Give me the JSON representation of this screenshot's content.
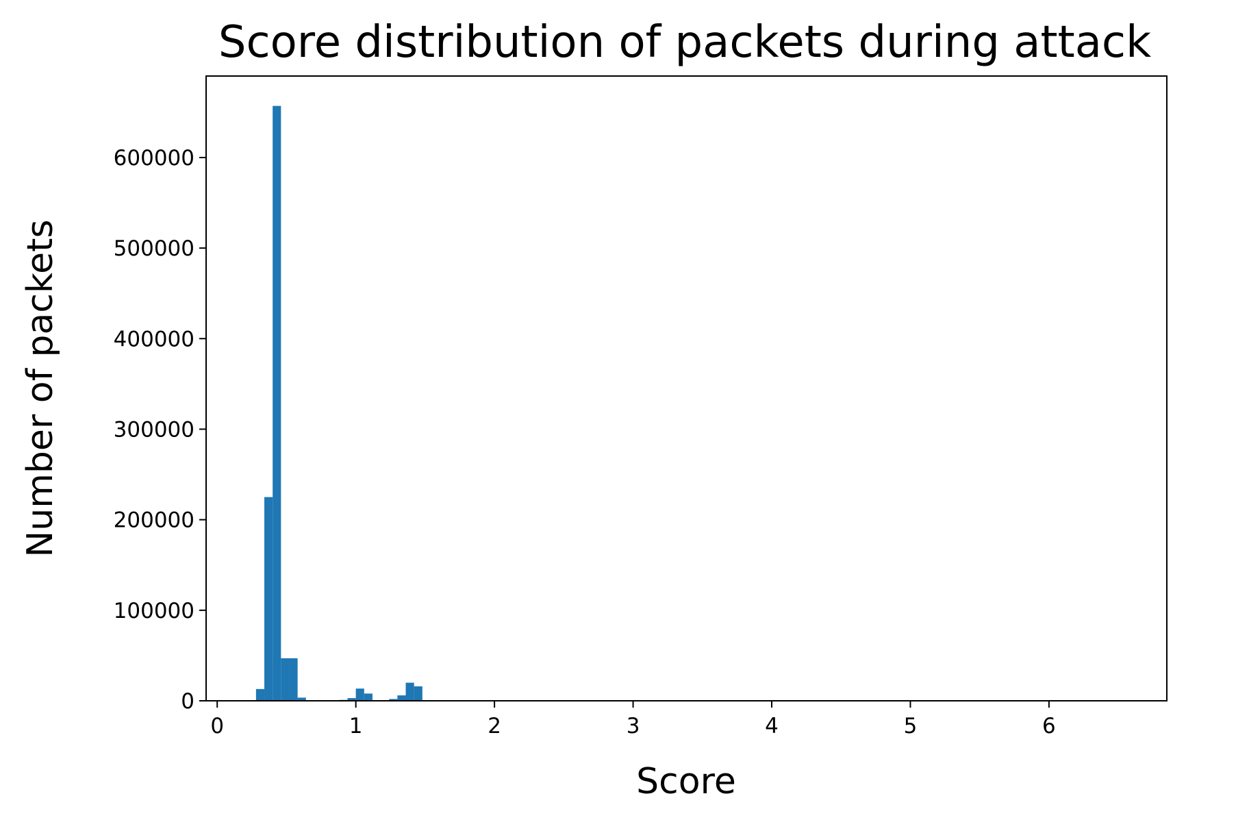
{
  "chart_data": {
    "type": "bar",
    "title": "Score distribution of packets during attack",
    "xlabel": "Score",
    "ylabel": "Number of packets",
    "xlim": [
      -0.08,
      6.85
    ],
    "ylim": [
      0,
      690000
    ],
    "xticks": [
      0,
      1,
      2,
      3,
      4,
      5,
      6
    ],
    "xtick_labels": [
      "0",
      "1",
      "2",
      "3",
      "4",
      "5",
      "6"
    ],
    "yticks": [
      0,
      100000,
      200000,
      300000,
      400000,
      500000,
      600000
    ],
    "ytick_labels": [
      "0",
      "100000",
      "200000",
      "300000",
      "400000",
      "500000",
      "600000"
    ],
    "grid": false,
    "bar_color": "#1f77b4",
    "bins": [
      {
        "x0": 0.28,
        "x1": 0.34,
        "value": 13000
      },
      {
        "x0": 0.34,
        "x1": 0.4,
        "value": 225000
      },
      {
        "x0": 0.4,
        "x1": 0.46,
        "value": 657000
      },
      {
        "x0": 0.46,
        "x1": 0.52,
        "value": 47000
      },
      {
        "x0": 0.52,
        "x1": 0.58,
        "value": 47000
      },
      {
        "x0": 0.58,
        "x1": 0.64,
        "value": 3500
      },
      {
        "x0": 0.88,
        "x1": 0.94,
        "value": 1000
      },
      {
        "x0": 0.94,
        "x1": 1.0,
        "value": 3000
      },
      {
        "x0": 1.0,
        "x1": 1.06,
        "value": 13500
      },
      {
        "x0": 1.06,
        "x1": 1.12,
        "value": 8000
      },
      {
        "x0": 1.24,
        "x1": 1.3,
        "value": 2000
      },
      {
        "x0": 1.3,
        "x1": 1.36,
        "value": 6000
      },
      {
        "x0": 1.36,
        "x1": 1.42,
        "value": 20000
      },
      {
        "x0": 1.42,
        "x1": 1.48,
        "value": 16000
      }
    ]
  }
}
